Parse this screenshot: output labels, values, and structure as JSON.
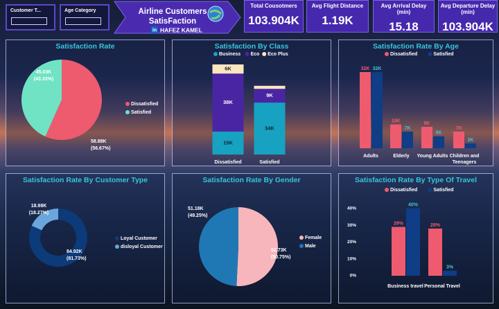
{
  "header": {
    "title_line1": "Airline Customers",
    "title_line2": "SatisFaction",
    "linkedin_icon": "in",
    "author": "HAFEZ KAMEL"
  },
  "slicers": [
    {
      "label": "Customer T..."
    },
    {
      "label": "Age Category"
    }
  ],
  "kpis": [
    {
      "label": "Total Cousotmers",
      "value": "103.904K"
    },
    {
      "label": "Avg Flight Distance",
      "value": "1.19K"
    },
    {
      "label": "Avg Arrival Delay (min)",
      "value": "15.18"
    },
    {
      "label": "Avg Departure Delay (min)",
      "value": "103.904K"
    }
  ],
  "chart_data": [
    {
      "type": "pie",
      "title": "Satisfaction Rate",
      "categories": [
        "Dissatisfied",
        "Satisfied"
      ],
      "values": [
        58880,
        45030
      ],
      "value_labels": [
        "58.88K",
        "45.03K"
      ],
      "percent_labels": [
        "(56.67%)",
        "(43.33%)"
      ],
      "colors": [
        "#ee5b6e",
        "#6fe3c4"
      ],
      "legend": "right"
    },
    {
      "type": "stacked_bar",
      "title": "Satisfaction By Class",
      "categories": [
        "Dissatisfied",
        "Satisfied"
      ],
      "series": [
        {
          "name": "Business",
          "color": "#17a2c2",
          "values": [
            15000,
            34000
          ],
          "value_labels": [
            "15K",
            "34K"
          ]
        },
        {
          "name": "Eco",
          "color": "#4a25a3",
          "values": [
            38000,
            9000
          ],
          "value_labels": [
            "38K",
            "9K"
          ]
        },
        {
          "name": "Eco Plus",
          "color": "#fbe5c0",
          "values": [
            6000,
            2000
          ],
          "value_labels": [
            "6K",
            null
          ]
        }
      ],
      "legend": "top"
    },
    {
      "type": "grouped_bar",
      "title": "Satisfaction Rate By Age",
      "categories": [
        "Adults",
        "Elderly",
        "Young Adults",
        "Children and Teenagers"
      ],
      "series": [
        {
          "name": "Dissatisfied",
          "color": "#ee5b6e",
          "values": [
            32000,
            10000,
            9000,
            7000
          ],
          "value_labels": [
            "32K",
            "10K",
            "9K",
            "7K"
          ]
        },
        {
          "name": "Satisfied",
          "color": "#0f3d86",
          "values": [
            32000,
            7000,
            5000,
            2000
          ],
          "value_labels": [
            "32K",
            "7K",
            "5K",
            "2K"
          ]
        }
      ],
      "legend": "top"
    },
    {
      "type": "donut",
      "title": "Satisfaction Rate By Customer Type",
      "categories": [
        "Loyal Customer",
        "disloyal Customer"
      ],
      "values": [
        84920,
        18980
      ],
      "value_labels": [
        "84.92K",
        "18.98K"
      ],
      "percent_labels": [
        "(81.73%)",
        "(18.27%)"
      ],
      "colors": [
        "#0d3a78",
        "#6aa6dc"
      ],
      "legend": "right"
    },
    {
      "type": "pie",
      "title": "Satisfaction Rate By Gender",
      "categories": [
        "Female",
        "Male"
      ],
      "values": [
        52730,
        51180
      ],
      "value_labels": [
        "52.73K",
        "51.18K"
      ],
      "percent_labels": [
        "(50.75%)",
        "(49.25%)"
      ],
      "colors": [
        "#f7b6bb",
        "#1f78b4"
      ],
      "legend": "right"
    },
    {
      "type": "grouped_bar",
      "title": "Satisfaction Rate By Type Of Travel",
      "categories": [
        "Business travel",
        "Personal Travel"
      ],
      "series": [
        {
          "name": "Dissatisfied",
          "color": "#ee5b6e",
          "values": [
            29,
            28
          ],
          "value_labels": [
            "29%",
            "28%"
          ]
        },
        {
          "name": "Satisfied",
          "color": "#0f3d86",
          "values": [
            40,
            3
          ],
          "value_labels": [
            "40%",
            "3%"
          ]
        }
      ],
      "ylim": [
        0,
        44
      ],
      "yticks": [
        {
          "value": 0,
          "label": "0%"
        },
        {
          "value": 10,
          "label": "10%"
        },
        {
          "value": 20,
          "label": "20%"
        },
        {
          "value": 30,
          "label": "30%"
        },
        {
          "value": 40,
          "label": "40%"
        }
      ],
      "legend": "top"
    }
  ]
}
